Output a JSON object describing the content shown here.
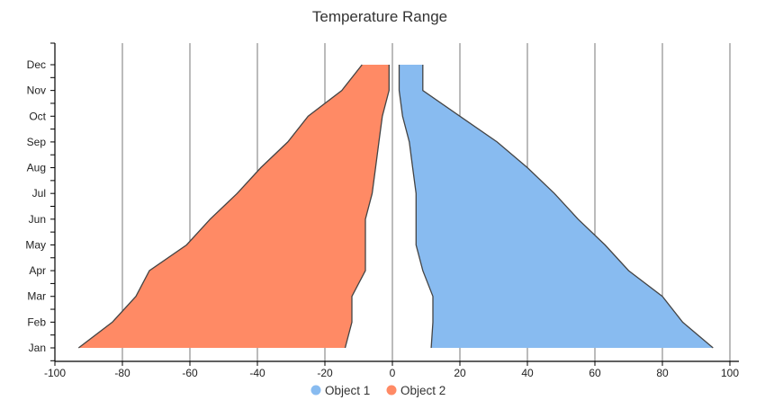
{
  "chart_data": {
    "type": "area",
    "orientation": "horizontal",
    "title": "Temperature Range",
    "xlabel": "",
    "ylabel": "",
    "xlim": [
      -100,
      100
    ],
    "x_ticks": [
      -100,
      -80,
      -60,
      -40,
      -20,
      0,
      20,
      40,
      60,
      80,
      100
    ],
    "categories": [
      "Jan",
      "Feb",
      "Mar",
      "Apr",
      "May",
      "Jun",
      "Jul",
      "Aug",
      "Sep",
      "Oct",
      "Nov",
      "Dec"
    ],
    "grid": "vertical",
    "legend": "bottom-center",
    "series": [
      {
        "name": "Object 1",
        "color": "#88bbf0",
        "low": [
          11.5,
          12,
          12,
          9,
          7,
          7,
          7,
          6,
          5,
          3,
          2,
          2
        ],
        "high": [
          95,
          86,
          80,
          70,
          63,
          55,
          48,
          40,
          31,
          20,
          9,
          9
        ]
      },
      {
        "name": "Object 2",
        "color": "#ff8a65",
        "low": [
          -93,
          -83,
          -76,
          -72,
          -61,
          -54,
          -46,
          -39,
          -31,
          -25,
          -15,
          -9
        ],
        "high": [
          -14,
          -12,
          -12,
          -8,
          -8,
          -8,
          -6,
          -5,
          -4,
          -3,
          -1,
          -1
        ]
      }
    ]
  }
}
